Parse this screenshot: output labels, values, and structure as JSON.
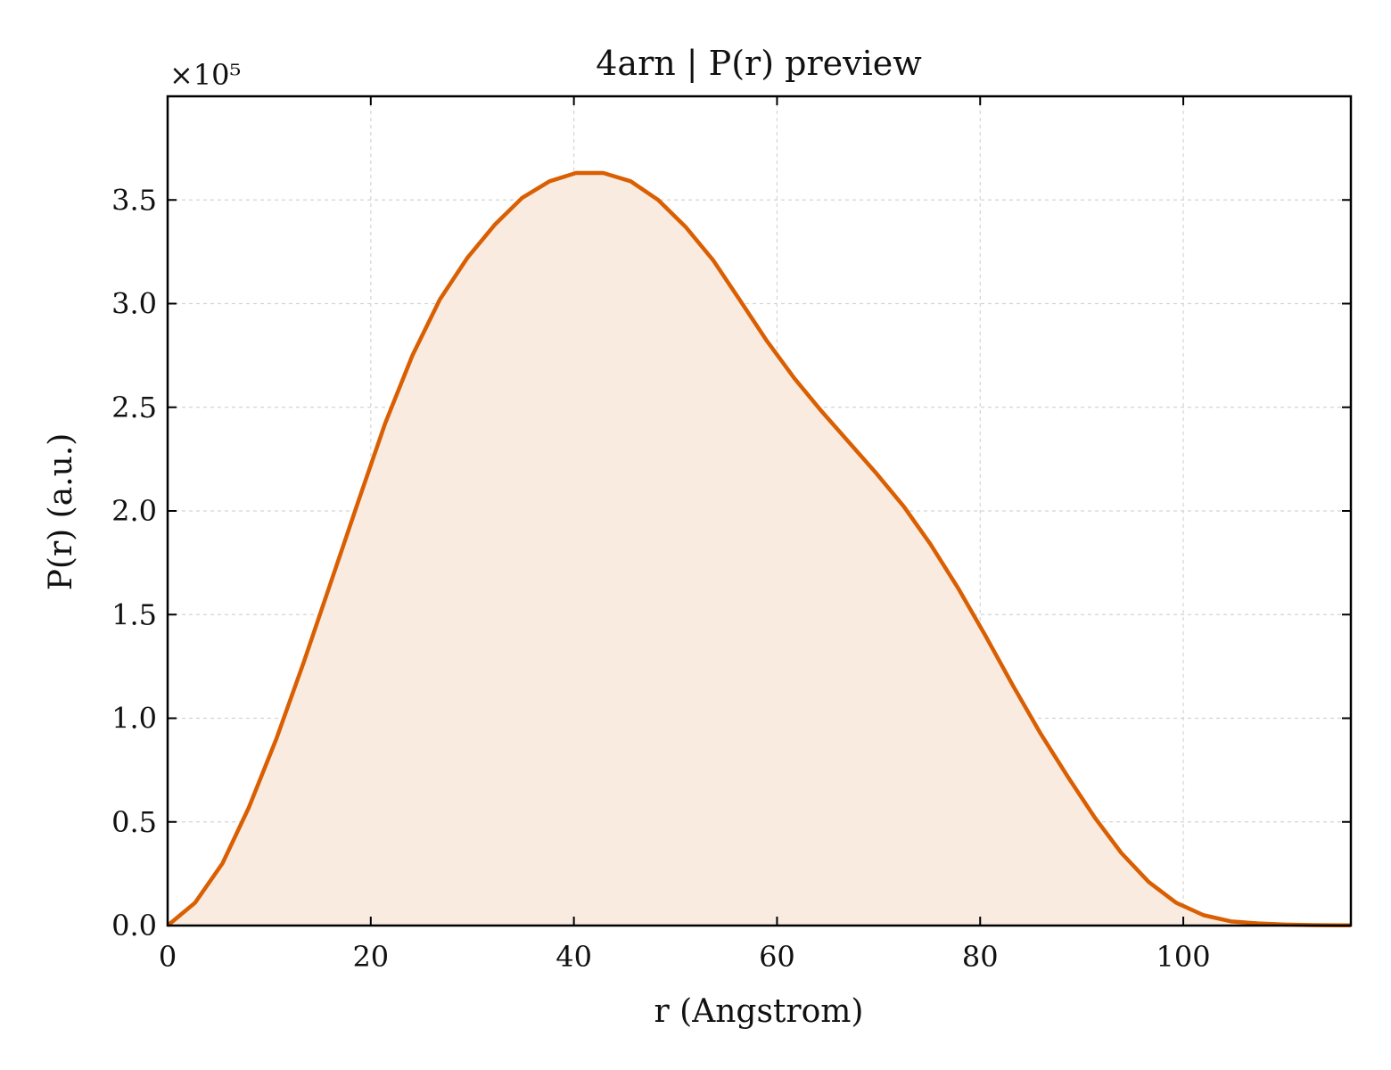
{
  "chart_data": {
    "type": "area",
    "title": "4arn | P(r) preview",
    "xlabel": "r (Angstrom)",
    "ylabel": "P(r) (a.u.)",
    "y_multiplier_label": "×10⁵",
    "y_multiplier": 100000,
    "xlim": [
      0,
      116.5
    ],
    "ylim": [
      0,
      4.0
    ],
    "x_ticks": [
      0,
      20,
      40,
      60,
      80,
      100
    ],
    "x_tick_labels": [
      "0",
      "20",
      "40",
      "60",
      "80",
      "100"
    ],
    "y_ticks": [
      0,
      0.5,
      1.0,
      1.5,
      2.0,
      2.5,
      3.0,
      3.5
    ],
    "y_tick_labels": [
      "0.0",
      "0.5",
      "1.0",
      "1.5",
      "2.0",
      "2.5",
      "3.0",
      "3.5"
    ],
    "grid": true,
    "line_color": "#d95f02",
    "fill_color": "#f9ebe0",
    "series": [
      {
        "x": [
          0,
          2.7,
          5.4,
          8.0,
          10.7,
          13.4,
          16.1,
          18.8,
          21.4,
          24.1,
          26.8,
          29.5,
          32.2,
          34.9,
          37.6,
          40.2,
          42.9,
          45.6,
          48.3,
          51.0,
          53.7,
          56.3,
          59.0,
          61.7,
          64.4,
          67.1,
          69.8,
          72.5,
          75.1,
          77.8,
          80.5,
          83.2,
          85.9,
          88.6,
          91.3,
          93.9,
          96.6,
          99.3,
          102.0,
          104.7,
          107.4,
          110.0,
          112.7,
          115.4,
          116.5
        ],
        "y": [
          0.0,
          0.11,
          0.3,
          0.57,
          0.9,
          1.27,
          1.66,
          2.05,
          2.42,
          2.75,
          3.02,
          3.22,
          3.38,
          3.51,
          3.59,
          3.63,
          3.63,
          3.59,
          3.5,
          3.37,
          3.21,
          3.02,
          2.82,
          2.64,
          2.48,
          2.33,
          2.18,
          2.02,
          1.84,
          1.63,
          1.4,
          1.16,
          0.93,
          0.72,
          0.52,
          0.35,
          0.21,
          0.11,
          0.05,
          0.02,
          0.01,
          0.005,
          0.002,
          0.001,
          0.001
        ]
      }
    ]
  }
}
